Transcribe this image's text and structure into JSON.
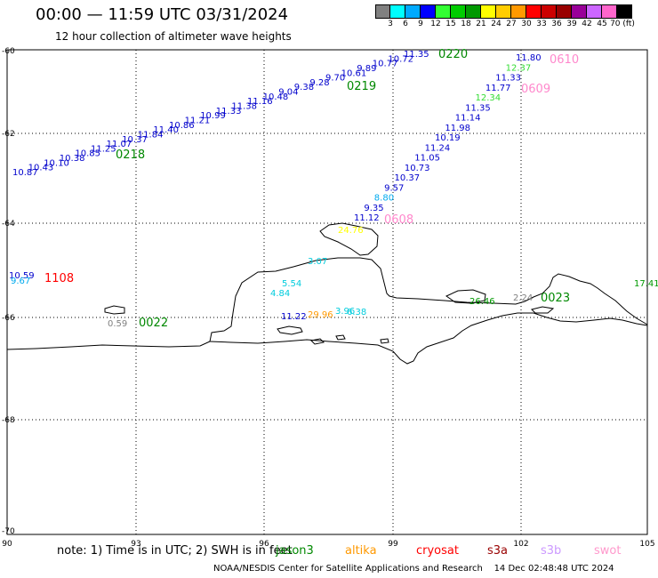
{
  "header": {
    "title": "00:00 — 11:59 UTC 03/31/2024",
    "subtitle": "12 hour collection of altimeter wave heights"
  },
  "color_scale": {
    "labels": [
      "3",
      "6",
      "9",
      "12",
      "15",
      "18",
      "21",
      "24",
      "27",
      "30",
      "33",
      "36",
      "39",
      "42",
      "45",
      "70 (ft)"
    ],
    "colors": [
      "#808080",
      "#00ffff",
      "#00aaff",
      "#0000ff",
      "#33ff33",
      "#00cc00",
      "#009900",
      "#ffff00",
      "#ffcc00",
      "#ff9900",
      "#ff0000",
      "#cc0000",
      "#990000",
      "#990099",
      "#cc66ff",
      "#ff66cc",
      "#000000"
    ]
  },
  "axes": {
    "x_ticks": [
      "90",
      "93",
      "96",
      "99",
      "102",
      "105"
    ],
    "y_ticks": [
      "-60",
      "-62",
      "-64",
      "-66",
      "-68",
      "-70"
    ]
  },
  "tracks": {
    "track_0218_0219_0220": [
      {
        "v": "10.87",
        "c": "#0000cc"
      },
      {
        "v": "10.43",
        "c": "#0000cc"
      },
      {
        "v": "10.10",
        "c": "#0000cc"
      },
      {
        "v": "10.38",
        "c": "#0000cc"
      },
      {
        "v": "10.85",
        "c": "#0000cc"
      },
      {
        "v": "11.25",
        "c": "#0000cc"
      },
      {
        "v": "11.07",
        "c": "#0000cc"
      },
      {
        "v": "10.37",
        "c": "#0000cc"
      },
      {
        "v": "11.84",
        "c": "#0000cc"
      },
      {
        "v": "11.40",
        "c": "#0000cc"
      },
      {
        "v": "10.86",
        "c": "#0000cc"
      },
      {
        "v": "11.21",
        "c": "#0000cc"
      },
      {
        "v": "10.99",
        "c": "#0000cc"
      },
      {
        "v": "11.33",
        "c": "#0000cc"
      },
      {
        "v": "11.38",
        "c": "#0000cc"
      },
      {
        "v": "11.16",
        "c": "#0000cc"
      },
      {
        "v": "10.48",
        "c": "#0000cc"
      },
      {
        "v": "9.04",
        "c": "#0000cc"
      },
      {
        "v": "9.38",
        "c": "#0000cc"
      },
      {
        "v": "9.28",
        "c": "#0000cc"
      },
      {
        "v": "9.70",
        "c": "#0000cc"
      },
      {
        "v": "10.61",
        "c": "#0000cc"
      },
      {
        "v": "9.89",
        "c": "#0000cc"
      },
      {
        "v": "10.77",
        "c": "#0000cc"
      },
      {
        "v": "10.72",
        "c": "#0000cc"
      },
      {
        "v": "11.35",
        "c": "#0000cc"
      }
    ],
    "track_0608_0609_0610": [
      {
        "v": "11.12",
        "c": "#0000cc"
      },
      {
        "v": "9.35",
        "c": "#0000cc"
      },
      {
        "v": "8.80",
        "c": "#00aaee"
      },
      {
        "v": "9.57",
        "c": "#0000cc"
      },
      {
        "v": "10.37",
        "c": "#0000cc"
      },
      {
        "v": "10.73",
        "c": "#0000cc"
      },
      {
        "v": "11.05",
        "c": "#0000cc"
      },
      {
        "v": "11.24",
        "c": "#0000cc"
      },
      {
        "v": "10.19",
        "c": "#0000cc"
      },
      {
        "v": "11.98",
        "c": "#0000cc"
      },
      {
        "v": "11.14",
        "c": "#0000cc"
      },
      {
        "v": "11.35",
        "c": "#0000cc"
      },
      {
        "v": "12.34",
        "c": "#33dd33"
      },
      {
        "v": "11.77",
        "c": "#0000cc"
      },
      {
        "v": "11.33",
        "c": "#0000cc"
      },
      {
        "v": "12.37",
        "c": "#33dd33"
      },
      {
        "v": "11.80",
        "c": "#0000cc"
      }
    ],
    "misc": [
      {
        "v": "10.59",
        "c": "#0000cc"
      },
      {
        "v": "9.67",
        "c": "#00aaee"
      },
      {
        "v": "0.59",
        "c": "#808080"
      },
      {
        "v": "3.07",
        "c": "#00ccdd"
      },
      {
        "v": "5.54",
        "c": "#00ccdd"
      },
      {
        "v": "4.84",
        "c": "#00ccdd"
      },
      {
        "v": "11.22",
        "c": "#0000cc"
      },
      {
        "v": "29.96",
        "c": "#ff9900"
      },
      {
        "v": "3.96",
        "c": "#00ccdd"
      },
      {
        "v": "6.38",
        "c": "#00ccdd"
      },
      {
        "v": "26.46",
        "c": "#009900"
      },
      {
        "v": "2.24",
        "c": "#808080"
      },
      {
        "v": "17.41",
        "c": "#009900"
      },
      {
        "v": "24.76",
        "c": "#ffff00"
      }
    ]
  },
  "time_labels": [
    {
      "t": "0218",
      "c": "#008800"
    },
    {
      "t": "0219",
      "c": "#008800"
    },
    {
      "t": "0220",
      "c": "#008800"
    },
    {
      "t": "0608",
      "c": "#ff88cc"
    },
    {
      "t": "0609",
      "c": "#ff88cc"
    },
    {
      "t": "0610",
      "c": "#ff88cc"
    },
    {
      "t": "1108",
      "c": "#ff0000"
    },
    {
      "t": "0022",
      "c": "#008800"
    },
    {
      "t": "0023",
      "c": "#008800"
    }
  ],
  "footer": {
    "note": "note: 1) Time is in UTC; 2) SWH is in feet",
    "satellites": [
      {
        "name": "jason3",
        "color": "#008800"
      },
      {
        "name": "altika",
        "color": "#ff9900"
      },
      {
        "name": "cryosat",
        "color": "#ff0000"
      },
      {
        "name": "s3a",
        "color": "#990000"
      },
      {
        "name": "s3b",
        "color": "#cc99ff"
      },
      {
        "name": "swot",
        "color": "#ff99cc"
      }
    ],
    "credit": "NOAA/NESDIS Center for Satellite Applications and Research    14 Dec 02:48:48 UTC 2024"
  }
}
